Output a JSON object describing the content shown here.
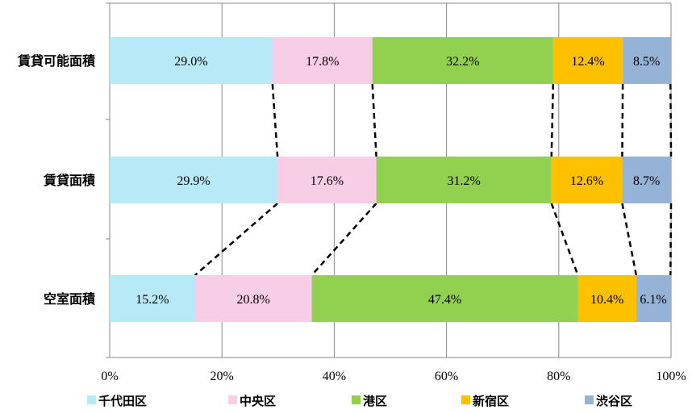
{
  "chart_data": {
    "type": "bar",
    "orientation": "horizontal",
    "stacked": "percent",
    "categories": [
      "賃貸可能面積",
      "賃貸面積",
      "空室面積"
    ],
    "series": [
      {
        "name": "千代田区",
        "color": "#b7e9f7",
        "values": [
          29.0,
          29.9,
          15.2
        ],
        "labels": [
          "29.0%",
          "29.9%",
          "15.2%"
        ]
      },
      {
        "name": "中央区",
        "color": "#f8cde6",
        "values": [
          17.8,
          17.6,
          20.8
        ],
        "labels": [
          "17.8%",
          "17.6%",
          "20.8%"
        ]
      },
      {
        "name": "港区",
        "color": "#92d050",
        "values": [
          32.2,
          31.2,
          47.4
        ],
        "labels": [
          "32.2%",
          "31.2%",
          "47.4%"
        ]
      },
      {
        "name": "新宿区",
        "color": "#ffc000",
        "values": [
          12.4,
          12.6,
          10.4
        ],
        "labels": [
          "12.4%",
          "12.6%",
          "10.4%"
        ]
      },
      {
        "name": "渋谷区",
        "color": "#95b3d7",
        "values": [
          8.5,
          8.7,
          6.1
        ],
        "labels": [
          "8.5%",
          "8.7%",
          "6.1%"
        ]
      }
    ],
    "x_ticks": [
      "0%",
      "20%",
      "40%",
      "60%",
      "80%",
      "100%"
    ],
    "xlim": [
      0,
      100
    ],
    "grid": "vertical",
    "series_lines": "dashed",
    "legend_position": "bottom"
  }
}
